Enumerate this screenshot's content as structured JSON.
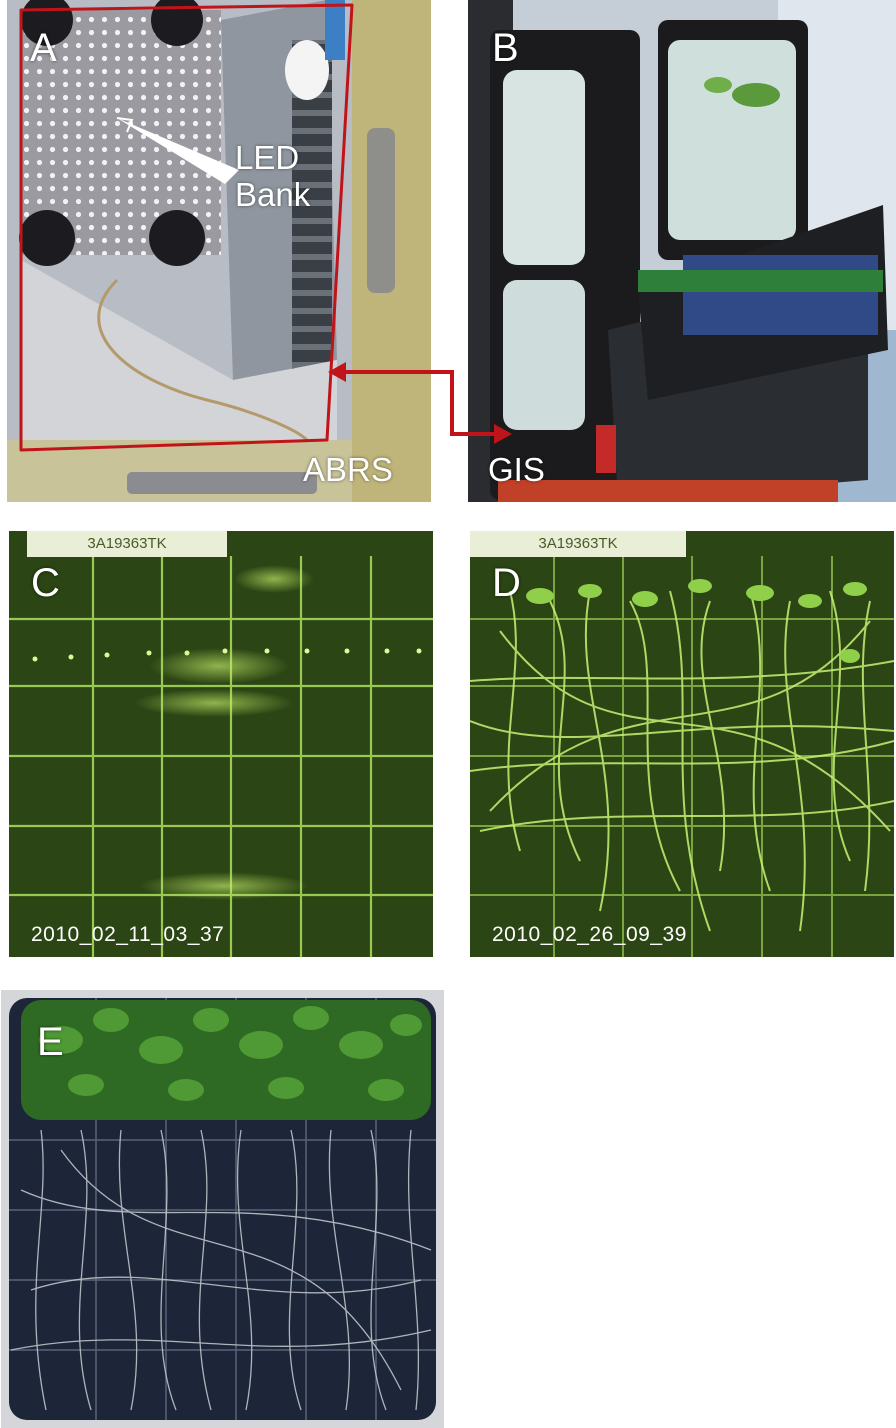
{
  "panels": {
    "a": {
      "label": "A",
      "led_label": "LED\nBank",
      "abrs_label": "ABRS"
    },
    "b": {
      "label": "B",
      "gis_label": "GIS"
    },
    "c": {
      "label": "C",
      "plate_tag": "3A19363TK",
      "timestamp": "2010_02_11_03_37"
    },
    "d": {
      "label": "D",
      "plate_tag": "3A19363TK",
      "timestamp": "2010_02_26_09_39"
    },
    "e": {
      "label": "E"
    }
  },
  "colors": {
    "callout_red": "#c0141a",
    "fluorescence_green": "#b8ef5a",
    "plate_background": "#243a12"
  }
}
